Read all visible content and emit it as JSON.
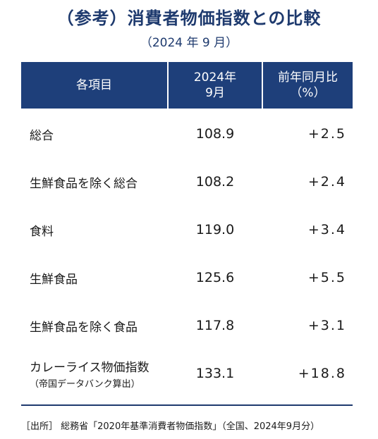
{
  "title": "（参考）消費者物価指数との比較",
  "subtitle": "（2024 年 9 月）",
  "table": {
    "headers": {
      "item": "各項目",
      "month": "2024年\n9月",
      "change": "前年同月比\n（%）"
    },
    "rows": [
      {
        "label": "総合",
        "sub": "",
        "value": "108.9",
        "change": "+2.5"
      },
      {
        "label": "生鮮食品を除く総合",
        "sub": "",
        "value": "108.2",
        "change": "+2.4"
      },
      {
        "label": "食料",
        "sub": "",
        "value": "119.0",
        "change": "+3.4"
      },
      {
        "label": "生鮮食品",
        "sub": "",
        "value": "125.6",
        "change": "+5.5"
      },
      {
        "label": "生鮮食品を除く食品",
        "sub": "",
        "value": "117.8",
        "change": "+3.1"
      },
      {
        "label": "カレーライス物価指数",
        "sub": "（帝国データバンク算出）",
        "value": "133.1",
        "change": "+18.8"
      }
    ]
  },
  "source": "［出所］ 総務省「2020年基準消費者物価指数」（全国、2024年9月分）"
}
